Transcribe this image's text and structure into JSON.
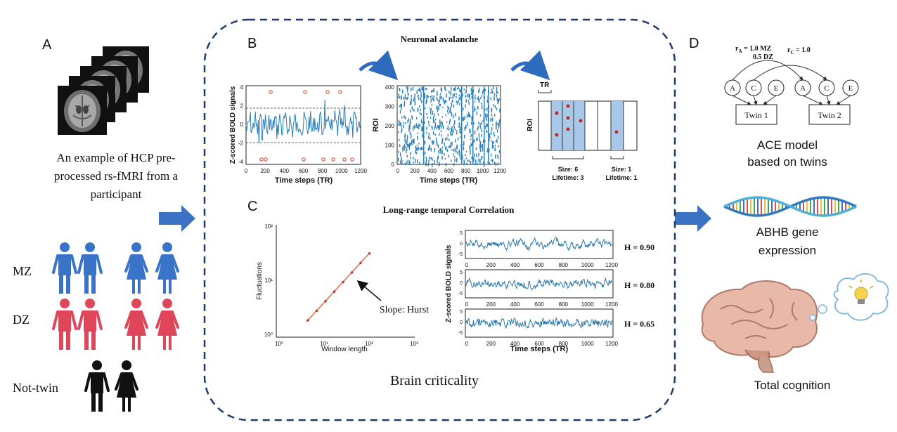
{
  "panel_a": {
    "letter": "A",
    "caption_lines": [
      "An example of HCP pre-",
      "processed rs-fMRI from a",
      "participant"
    ],
    "twin_labels": [
      "MZ",
      "DZ",
      "Not-twin"
    ]
  },
  "panel_b": {
    "letter": "B",
    "title": "Neuronal avalanche",
    "plot1": {
      "ylabel": "Z-scored BOLD signals",
      "xlabel": "Time steps (TR)",
      "yticks": [
        "4",
        "2",
        "0",
        "-2",
        "-4"
      ],
      "xticks": [
        "0",
        "200",
        "400",
        "600",
        "800",
        "1000",
        "1200"
      ]
    },
    "plot2": {
      "ylabel": "ROI",
      "xlabel": "Time steps (TR)",
      "yticks": [
        "400",
        "300",
        "200",
        "100",
        "0"
      ],
      "xticks": [
        "0",
        "200",
        "400",
        "600",
        "800",
        "1000",
        "1200"
      ]
    },
    "plot3": {
      "tr_label": "TR",
      "ylabel": "ROI",
      "avalanche1": [
        "Size: 6",
        "Lifetime: 3"
      ],
      "avalanche2": [
        "Size: 1",
        "Lifetime: 1"
      ]
    }
  },
  "panel_c": {
    "letter": "C",
    "title": "Long-range temporal Correlation",
    "loglog": {
      "ylabel": "Fluctuations",
      "xlabel": "Window length",
      "yticks": [
        "10²",
        "10¹",
        "10⁰"
      ],
      "xticks": [
        "10⁰",
        "10¹",
        "10²",
        "10³"
      ],
      "annotation": "Slope: Hurst"
    },
    "series_plot": {
      "ylabel": "Z-scored BOLD signals",
      "xlabel": "Time steps (TR)",
      "xticks": [
        "0",
        "200",
        "400",
        "600",
        "800",
        "1000",
        "1200"
      ],
      "yticks": [
        "5",
        "0",
        "-5"
      ],
      "hurst": [
        "H = 0.90",
        "H = 0.80",
        "H = 0.65"
      ]
    },
    "footer": "Brain criticality"
  },
  "panel_d": {
    "letter": "D",
    "ace": {
      "ra_label": "r",
      "ra_sub": "A",
      "ra_value1": " = 1.0 MZ",
      "ra_value2": "0.5 DZ",
      "rc_label": "r",
      "rc_sub": "C",
      "rc_value": " = 1.0",
      "nodes": [
        "A",
        "C",
        "E",
        "A",
        "C",
        "E"
      ],
      "twin1": "Twin 1",
      "twin2": "Twin 2",
      "caption_lines": [
        "ACE model",
        "based on twins"
      ]
    },
    "gene_lines": [
      "ABHB gene",
      "expression"
    ],
    "cognition": "Total cognition"
  },
  "colors": {
    "blue_signal": "#2a7fb8",
    "dashed_frame": "#1f3a6e",
    "arrow_blue": "#3b72c4",
    "mz_blue": "#3a74c9",
    "dz_red": "#e0465a",
    "loglog_line": "#e07050",
    "avalanche_fill": "#a8c8ea"
  }
}
